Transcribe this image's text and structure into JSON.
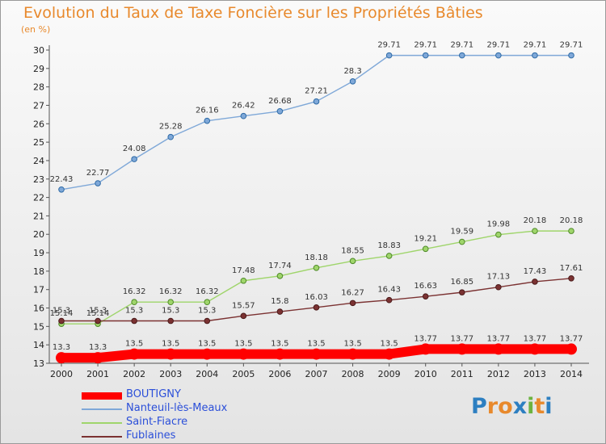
{
  "title": "Evolution du Taux de Taxe Foncière sur les Propriétés Bâties",
  "subtitle": "(en %)",
  "logo": {
    "text": "Proxiti",
    "colors": [
      "#2d7fc1",
      "#e8892c",
      "#e8892c",
      "#2d7fc1",
      "#6cb33f",
      "#e8892c",
      "#2d7fc1"
    ]
  },
  "chart_data": {
    "type": "line",
    "x": [
      "2000",
      "2001",
      "2002",
      "2003",
      "2004",
      "2005",
      "2006",
      "2007",
      "2008",
      "2009",
      "2010",
      "2011",
      "2012",
      "2013",
      "2014"
    ],
    "ylim": [
      13,
      30
    ],
    "yticks": [
      13,
      14,
      15,
      16,
      17,
      18,
      19,
      20,
      21,
      22,
      23,
      24,
      25,
      26,
      27,
      28,
      29,
      30
    ],
    "grid": false,
    "legend_position": "bottom-left",
    "series": [
      {
        "name": "BOUTIGNY",
        "color": "#ff0000",
        "values": [
          13.3,
          13.3,
          13.5,
          13.5,
          13.5,
          13.5,
          13.5,
          13.5,
          13.5,
          13.5,
          13.77,
          13.77,
          13.77,
          13.77,
          13.77
        ],
        "labels": [
          "13.3",
          "13.3",
          "13.5",
          "13.5",
          "13.5",
          "13.5",
          "13.5",
          "13.5",
          "13.5",
          "13.5",
          "13.77",
          "13.77",
          "13.77",
          "13.77",
          "13.77"
        ]
      },
      {
        "name": "Nanteuil-lès-Meaux",
        "color": "#7fa8d8",
        "values": [
          22.43,
          22.77,
          24.08,
          25.28,
          26.16,
          26.42,
          26.68,
          27.21,
          28.3,
          29.71,
          29.71,
          29.71,
          29.71,
          29.71,
          29.71
        ],
        "labels": [
          "22.43",
          "22.77",
          "24.08",
          "25.28",
          "26.16",
          "26.42",
          "26.68",
          "27.21",
          "28.3",
          "29.71",
          "29.71",
          "29.71",
          "29.71",
          "29.71",
          "29.71"
        ]
      },
      {
        "name": "Saint-Fiacre",
        "color": "#9fd56b",
        "values": [
          15.14,
          15.14,
          16.32,
          16.32,
          16.32,
          17.48,
          17.74,
          18.18,
          18.55,
          18.83,
          19.21,
          19.59,
          19.98,
          20.18,
          20.18
        ],
        "labels": [
          "15.14",
          "15.14",
          "16.32",
          "16.32",
          "16.32",
          "17.48",
          "17.74",
          "18.18",
          "18.55",
          "18.83",
          "19.21",
          "19.59",
          "19.98",
          "20.18",
          "20.18"
        ]
      },
      {
        "name": "Fublaines",
        "color": "#7b3232",
        "values": [
          15.3,
          15.3,
          15.3,
          15.3,
          15.3,
          15.57,
          15.8,
          16.03,
          16.27,
          16.43,
          16.63,
          16.85,
          17.13,
          17.43,
          17.61
        ],
        "labels": [
          "15.3",
          "15.3",
          "15.3",
          "15.3",
          "15.3",
          "15.57",
          "15.8",
          "16.03",
          "16.27",
          "16.43",
          "16.63",
          "16.85",
          "17.13",
          "17.43",
          "17.61"
        ]
      }
    ]
  }
}
